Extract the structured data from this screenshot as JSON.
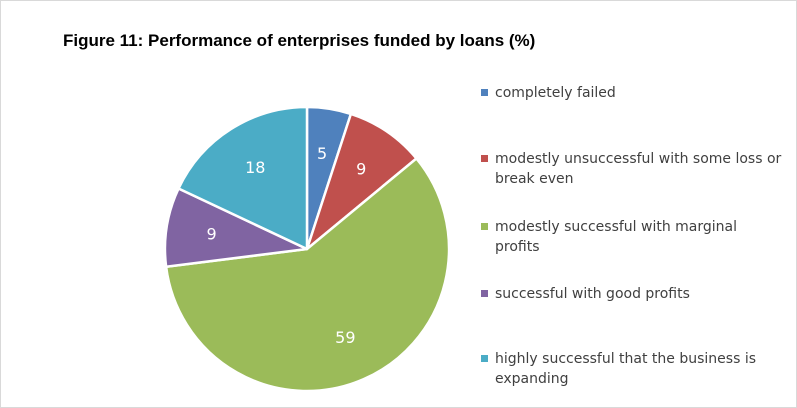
{
  "chart_data": {
    "type": "pie",
    "title": "Figure 11: Performance of enterprises funded by loans (%)",
    "categories": [
      "completely failed",
      "modestly unsuccessful with some loss or break even",
      "modestly successful with marginal profits",
      "successful with good profits",
      "highly successful that the business is expanding"
    ],
    "values": [
      5,
      9,
      59,
      9,
      18
    ],
    "colors": [
      "#4f81bd",
      "#c0504d",
      "#9bbb59",
      "#8064a2",
      "#4bacc6"
    ],
    "legend_position": "right",
    "start_angle": "top, clockwise"
  }
}
